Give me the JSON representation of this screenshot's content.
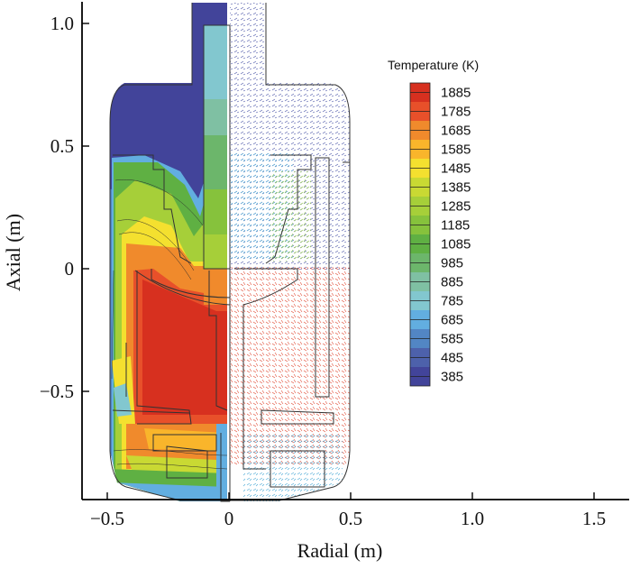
{
  "chart_data": {
    "type": "heatmap",
    "title": "",
    "xlabel": "Radial (m)",
    "ylabel": "Axial (m)",
    "xlim": [
      -0.6,
      1.65
    ],
    "ylim": [
      -0.94,
      1.1
    ],
    "x_ticks": [
      {
        "value": -0.5,
        "label": "−0.5"
      },
      {
        "value": 0,
        "label": "0"
      },
      {
        "value": 0.5,
        "label": "0.5"
      },
      {
        "value": 1.0,
        "label": "1.0"
      },
      {
        "value": 1.5,
        "label": "1.5"
      }
    ],
    "y_ticks": [
      {
        "value": -0.5,
        "label": "−0.5"
      },
      {
        "value": 0,
        "label": "0"
      },
      {
        "value": 0.5,
        "label": "0.5"
      },
      {
        "value": 1.0,
        "label": "1.0"
      }
    ],
    "grid": false,
    "legend": {
      "title": "Temperature (K)",
      "position": "top-right",
      "levels": [
        {
          "value": 1885,
          "label": "1885",
          "color": "#d7301f"
        },
        {
          "value": 1785,
          "label": "1785",
          "color": "#e8502a"
        },
        {
          "value": 1685,
          "label": "1685",
          "color": "#f08a2c"
        },
        {
          "value": 1585,
          "label": "1585",
          "color": "#f9b52b"
        },
        {
          "value": 1485,
          "label": "1485",
          "color": "#f4e02f"
        },
        {
          "value": 1385,
          "label": "1385",
          "color": "#c9d933"
        },
        {
          "value": 1285,
          "label": "1285",
          "color": "#a6cf39"
        },
        {
          "value": 1185,
          "label": "1185",
          "color": "#86c23c"
        },
        {
          "value": 1085,
          "label": "1085",
          "color": "#5fb043"
        },
        {
          "value": 985,
          "label": "985",
          "color": "#6cb66b"
        },
        {
          "value": 885,
          "label": "885",
          "color": "#7fc0a3"
        },
        {
          "value": 785,
          "label": "785",
          "color": "#82c7cf"
        },
        {
          "value": 685,
          "label": "685",
          "color": "#62aee0"
        },
        {
          "value": 585,
          "label": "585",
          "color": "#5286c4"
        },
        {
          "value": 485,
          "label": "485",
          "color": "#4d61ab"
        },
        {
          "value": 385,
          "label": "385",
          "color": "#42449a"
        }
      ]
    },
    "left_half": "temperature contours",
    "right_half": "velocity vectors"
  }
}
